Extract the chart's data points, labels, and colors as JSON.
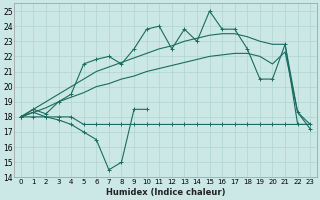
{
  "xlabel": "Humidex (Indice chaleur)",
  "color": "#1a6b5f",
  "bg_color": "#cce8e6",
  "grid_color": "#b0d4d0",
  "ylim": [
    14,
    25.5
  ],
  "xlim": [
    -0.5,
    23.5
  ],
  "yticks": [
    14,
    15,
    16,
    17,
    18,
    19,
    20,
    21,
    22,
    23,
    24,
    25
  ],
  "line_min_x": [
    0,
    1,
    2,
    3,
    4,
    5,
    6,
    7,
    8,
    9,
    10,
    11,
    12,
    13,
    14,
    15,
    16,
    17,
    18,
    19,
    20,
    21,
    22,
    23
  ],
  "line_min_y": [
    18,
    18,
    18,
    18,
    18,
    17.5,
    17.5,
    17.5,
    17.5,
    17.5,
    17.5,
    17.5,
    17.5,
    17.5,
    17.5,
    17.5,
    17.5,
    17.5,
    17.5,
    17.5,
    17.5,
    17.5,
    17.5,
    17.5
  ],
  "line_dip_x": [
    0,
    1,
    2,
    3,
    4,
    5,
    6,
    7,
    8,
    9,
    10
  ],
  "line_dip_y": [
    18,
    18.3,
    18.0,
    17.8,
    17.5,
    17.0,
    16.5,
    14.5,
    15.0,
    18.5,
    18.5
  ],
  "line_avg_x": [
    0,
    1,
    2,
    3,
    4,
    5,
    6,
    7,
    8,
    9,
    10,
    11,
    12,
    13,
    14,
    15,
    16,
    17,
    18,
    19,
    20,
    21,
    22,
    23
  ],
  "line_avg_y": [
    18,
    18.3,
    18.6,
    19.0,
    19.3,
    19.6,
    20.0,
    20.2,
    20.5,
    20.7,
    21.0,
    21.2,
    21.4,
    21.6,
    21.8,
    22.0,
    22.1,
    22.2,
    22.2,
    22.0,
    21.5,
    22.3,
    18.3,
    17.5
  ],
  "line_max_x": [
    0,
    1,
    2,
    3,
    4,
    5,
    6,
    7,
    8,
    9,
    10,
    11,
    12,
    13,
    14,
    15,
    16,
    17,
    18,
    19,
    20,
    21,
    22,
    23
  ],
  "line_max_y": [
    18,
    18.5,
    18.2,
    19.0,
    19.5,
    21.5,
    21.8,
    22.0,
    21.5,
    22.5,
    23.8,
    24.0,
    22.5,
    23.8,
    23.0,
    25.0,
    23.8,
    23.8,
    22.5,
    20.5,
    20.5,
    22.8,
    18.3,
    17.2
  ],
  "line_upper_x": [
    0,
    1,
    2,
    3,
    4,
    5,
    6,
    7,
    8,
    9,
    10,
    11,
    12,
    13,
    14,
    15,
    16,
    17,
    18,
    19,
    20,
    21,
    22,
    23
  ],
  "line_upper_y": [
    18,
    18.5,
    19.0,
    19.5,
    20.0,
    20.5,
    21.0,
    21.3,
    21.6,
    21.9,
    22.2,
    22.5,
    22.7,
    23.0,
    23.2,
    23.4,
    23.5,
    23.5,
    23.3,
    23.0,
    22.8,
    22.8,
    17.5,
    17.5
  ]
}
